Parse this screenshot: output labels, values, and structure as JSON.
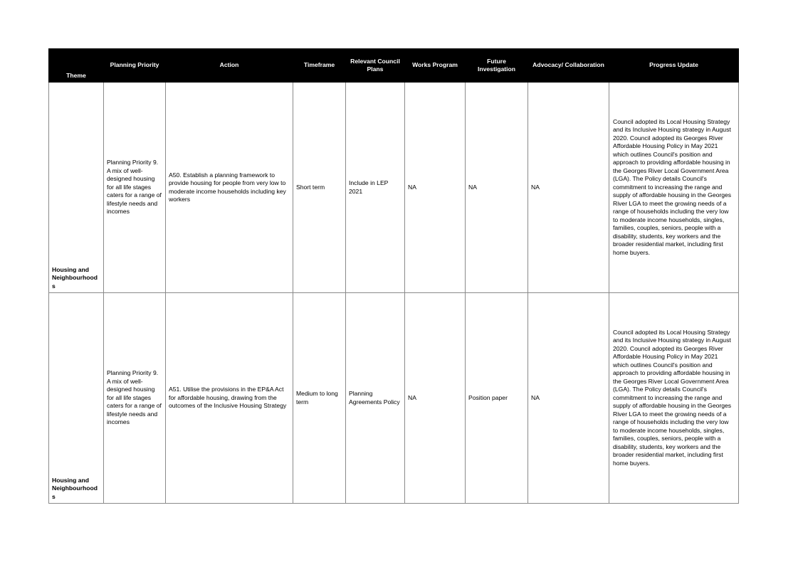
{
  "table": {
    "headers": [
      {
        "key": "theme",
        "label": "Theme"
      },
      {
        "key": "planning_priority",
        "label": "Planning Priority"
      },
      {
        "key": "action",
        "label": "Action"
      },
      {
        "key": "timeframe",
        "label": "Timeframe"
      },
      {
        "key": "relevant_council_plans",
        "label": "Relevant  Council Plans"
      },
      {
        "key": "works_program",
        "label": "Works  Program"
      },
      {
        "key": "future_investigation",
        "label": "Future Investigation"
      },
      {
        "key": "advocacy_collaboration",
        "label": "Advocacy/  Collaboration"
      },
      {
        "key": "progress_update",
        "label": "Progress Update"
      }
    ],
    "rows": [
      {
        "theme": "Housing and Neighbourhoods",
        "planning_priority": "Planning Priority 9. A mix of well-designed housing for all life stages caters for a range of lifestyle needs and incomes",
        "action": "A50. Establish a planning framework to provide housing for people from very low to moderate income households including key workers",
        "timeframe": "Short term",
        "relevant_council_plans": "Include in LEP 2021",
        "works_program": "NA",
        "future_investigation": "NA",
        "advocacy_collaboration": "NA",
        "progress_update": "Council adopted its Local Housing Strategy and its Inclusive Housing strategy in August 2020. Council adopted its Georges River Affordable Housing Policy in May 2021 which outlines Council's position and approach to providing affordable housing in the Georges River Local Government Area (LGA). The Policy details Council's commitment to increasing the range and supply of affordable housing in the Georges River LGA to meet the growing needs of a range of households including the very low to moderate income households, singles, families, couples, seniors, people with a disability, students, key workers and the broader residential market, including first home buyers."
      },
      {
        "theme": "Housing and Neighbourhoods",
        "planning_priority": "Planning Priority 9. A mix of well-designed housing for all life stages caters for a range of lifestyle needs and incomes",
        "action": "A51. Utilise the provisions in the EP&A Act for affordable housing, drawing from the outcomes of the Inclusive Housing Strategy",
        "timeframe": "Medium to long term",
        "relevant_council_plans": "Planning Agreements Policy",
        "works_program": "NA",
        "future_investigation": "Position paper",
        "advocacy_collaboration": "NA",
        "progress_update": "Council adopted its Local Housing Strategy and its Inclusive Housing strategy in August 2020. Council adopted its Georges River Affordable Housing Policy in May 2021 which outlines Council's position and approach to providing affordable housing in the Georges River Local Government Area (LGA). The Policy details Council's commitment to increasing the range and supply of affordable housing in the Georges River LGA to meet the growing needs of a range of households including the very low to moderate income households, singles, families, couples, seniors, people with a disability, students, key workers and the broader residential market, including first home buyers."
      }
    ]
  }
}
